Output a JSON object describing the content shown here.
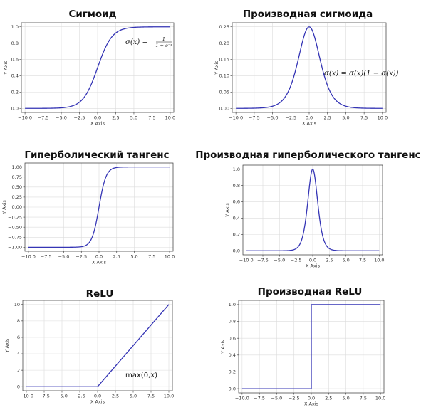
{
  "chart_data": [
    {
      "id": "sigmoid",
      "type": "line",
      "title": "Сигмоид",
      "xlabel": "X Axis",
      "ylabel": "Y Axis",
      "xlim": [
        -10.5,
        10.5
      ],
      "ylim": [
        -0.05,
        1.05
      ],
      "xticks": [
        -10,
        -7.5,
        -5,
        -2.5,
        0,
        2.5,
        5,
        7.5,
        10
      ],
      "xtick_labels": [
        "−10 0",
        "−7.5",
        "−5.0",
        "−2.5",
        "0.0",
        "2.5",
        "5.0",
        "7.5",
        "10 0"
      ],
      "yticks": [
        0,
        0.2,
        0.4,
        0.6,
        0.8,
        1.0
      ],
      "ytick_labels": [
        "0.0",
        "0.2",
        "0.4",
        "0.6",
        "0.8",
        "1.0"
      ],
      "grid": true,
      "function": "sigmoid",
      "line_color": "#3535b5",
      "annotation": {
        "lhs": "σ(x) = ",
        "num": "1",
        "den": "1 + e⁻ˣ"
      }
    },
    {
      "id": "dsigmoid",
      "type": "line",
      "title": "Производная сигмоида",
      "xlabel": "X Axis",
      "ylabel": "Y Axis",
      "xlim": [
        -10.5,
        10.5
      ],
      "ylim": [
        -0.0125,
        0.2625
      ],
      "xticks": [
        -10,
        -7.5,
        -5,
        -2.5,
        0,
        2.5,
        5,
        7.5,
        10
      ],
      "xtick_labels": [
        "−10 0",
        "−7.5",
        "−5.0",
        "−2.5",
        "0.0",
        "2.5",
        "5.0",
        "7.5",
        "10 0"
      ],
      "yticks": [
        0,
        0.05,
        0.1,
        0.15,
        0.2,
        0.25
      ],
      "ytick_labels": [
        "0.00",
        "0.05",
        "0.10",
        "0.15",
        "0.20",
        "0.25"
      ],
      "grid": true,
      "function": "dsigmoid",
      "line_color": "#3535b5",
      "annotation": {
        "text": "σ(x) = σ(x)(1 − σ(x))"
      }
    },
    {
      "id": "tanh",
      "type": "line",
      "title": "Гиперболический тангенс",
      "xlabel": "X Axis",
      "ylabel": "Y Axis",
      "xlim": [
        -10.5,
        10.5
      ],
      "ylim": [
        -1.1,
        1.1
      ],
      "xticks": [
        -10,
        -7.5,
        -5,
        -2.5,
        0,
        2.5,
        5,
        7.5,
        10
      ],
      "xtick_labels": [
        "−10 0",
        "−7.5",
        "−5.0",
        "−2.5",
        "0.0",
        "2.5",
        "5.0",
        "7.5",
        "10 0"
      ],
      "yticks": [
        -1,
        -0.75,
        -0.5,
        -0.25,
        0,
        0.25,
        0.5,
        0.75,
        1
      ],
      "ytick_labels": [
        "−1.00",
        "−0.75",
        "−0.50",
        "−0.25",
        "0.00",
        "0.25",
        "0.50",
        "0.75",
        "1.00"
      ],
      "grid": true,
      "function": "tanh",
      "line_color": "#3535b5"
    },
    {
      "id": "dtanh",
      "type": "line",
      "title": "Производная гиперболического тангенса",
      "xlabel": "X Axis",
      "ylabel": "Y Axis",
      "xlim": [
        -10.5,
        10.5
      ],
      "ylim": [
        -0.05,
        1.05
      ],
      "xticks": [
        -10,
        -7.5,
        -5,
        -2.5,
        0,
        2.5,
        5,
        7.5,
        10
      ],
      "xtick_labels": [
        "−10 0",
        "−7.5",
        "−5.0",
        "−2.5",
        "0.0",
        "2.5",
        "5.0",
        "7.5",
        "10.0"
      ],
      "yticks": [
        0,
        0.2,
        0.4,
        0.6,
        0.8,
        1.0
      ],
      "ytick_labels": [
        "0.0",
        "0.2",
        "0.4",
        "0.6",
        "0.8",
        "1.0"
      ],
      "grid": true,
      "function": "dtanh",
      "line_color": "#3535b5"
    },
    {
      "id": "relu",
      "type": "line",
      "title": "ReLU",
      "xlabel": "X Axis",
      "ylabel": "Y Axis",
      "xlim": [
        -10.5,
        10.5
      ],
      "ylim": [
        -0.5,
        10.5
      ],
      "xticks": [
        -10,
        -7.5,
        -5,
        -2.5,
        0,
        2.5,
        5,
        7.5,
        10
      ],
      "xtick_labels": [
        "−10 0",
        "−7.5",
        "−5.0",
        "−2.5",
        "0.0",
        "2.5",
        "5.0",
        "7.5",
        "10.0"
      ],
      "yticks": [
        0,
        2,
        4,
        6,
        8,
        10
      ],
      "ytick_labels": [
        "0",
        "2",
        "4",
        "6",
        "8",
        "10"
      ],
      "grid": true,
      "function": "relu",
      "line_color": "#3535b5",
      "annotation": {
        "text": "max(0,x)"
      }
    },
    {
      "id": "drelu",
      "type": "line",
      "title": "Производная ReLU",
      "xlabel": "X Axis",
      "ylabel": "Y Axis",
      "xlim": [
        -10.5,
        10.5
      ],
      "ylim": [
        -0.05,
        1.05
      ],
      "xticks": [
        -10,
        -7.5,
        -5,
        -2.5,
        0,
        2.5,
        5,
        7.5,
        10
      ],
      "xtick_labels": [
        "−10.0",
        "−7.5",
        "−5.0",
        "−2.5",
        "0.0",
        "2.5",
        "5.0",
        "7.5",
        "10.0"
      ],
      "yticks": [
        0,
        0.2,
        0.4,
        0.6,
        0.8,
        1.0
      ],
      "ytick_labels": [
        "0.0",
        "0.2",
        "0.4",
        "0.6",
        "0.8",
        "1.0"
      ],
      "grid": true,
      "function": "drelu",
      "line_color": "#3535b5"
    }
  ]
}
